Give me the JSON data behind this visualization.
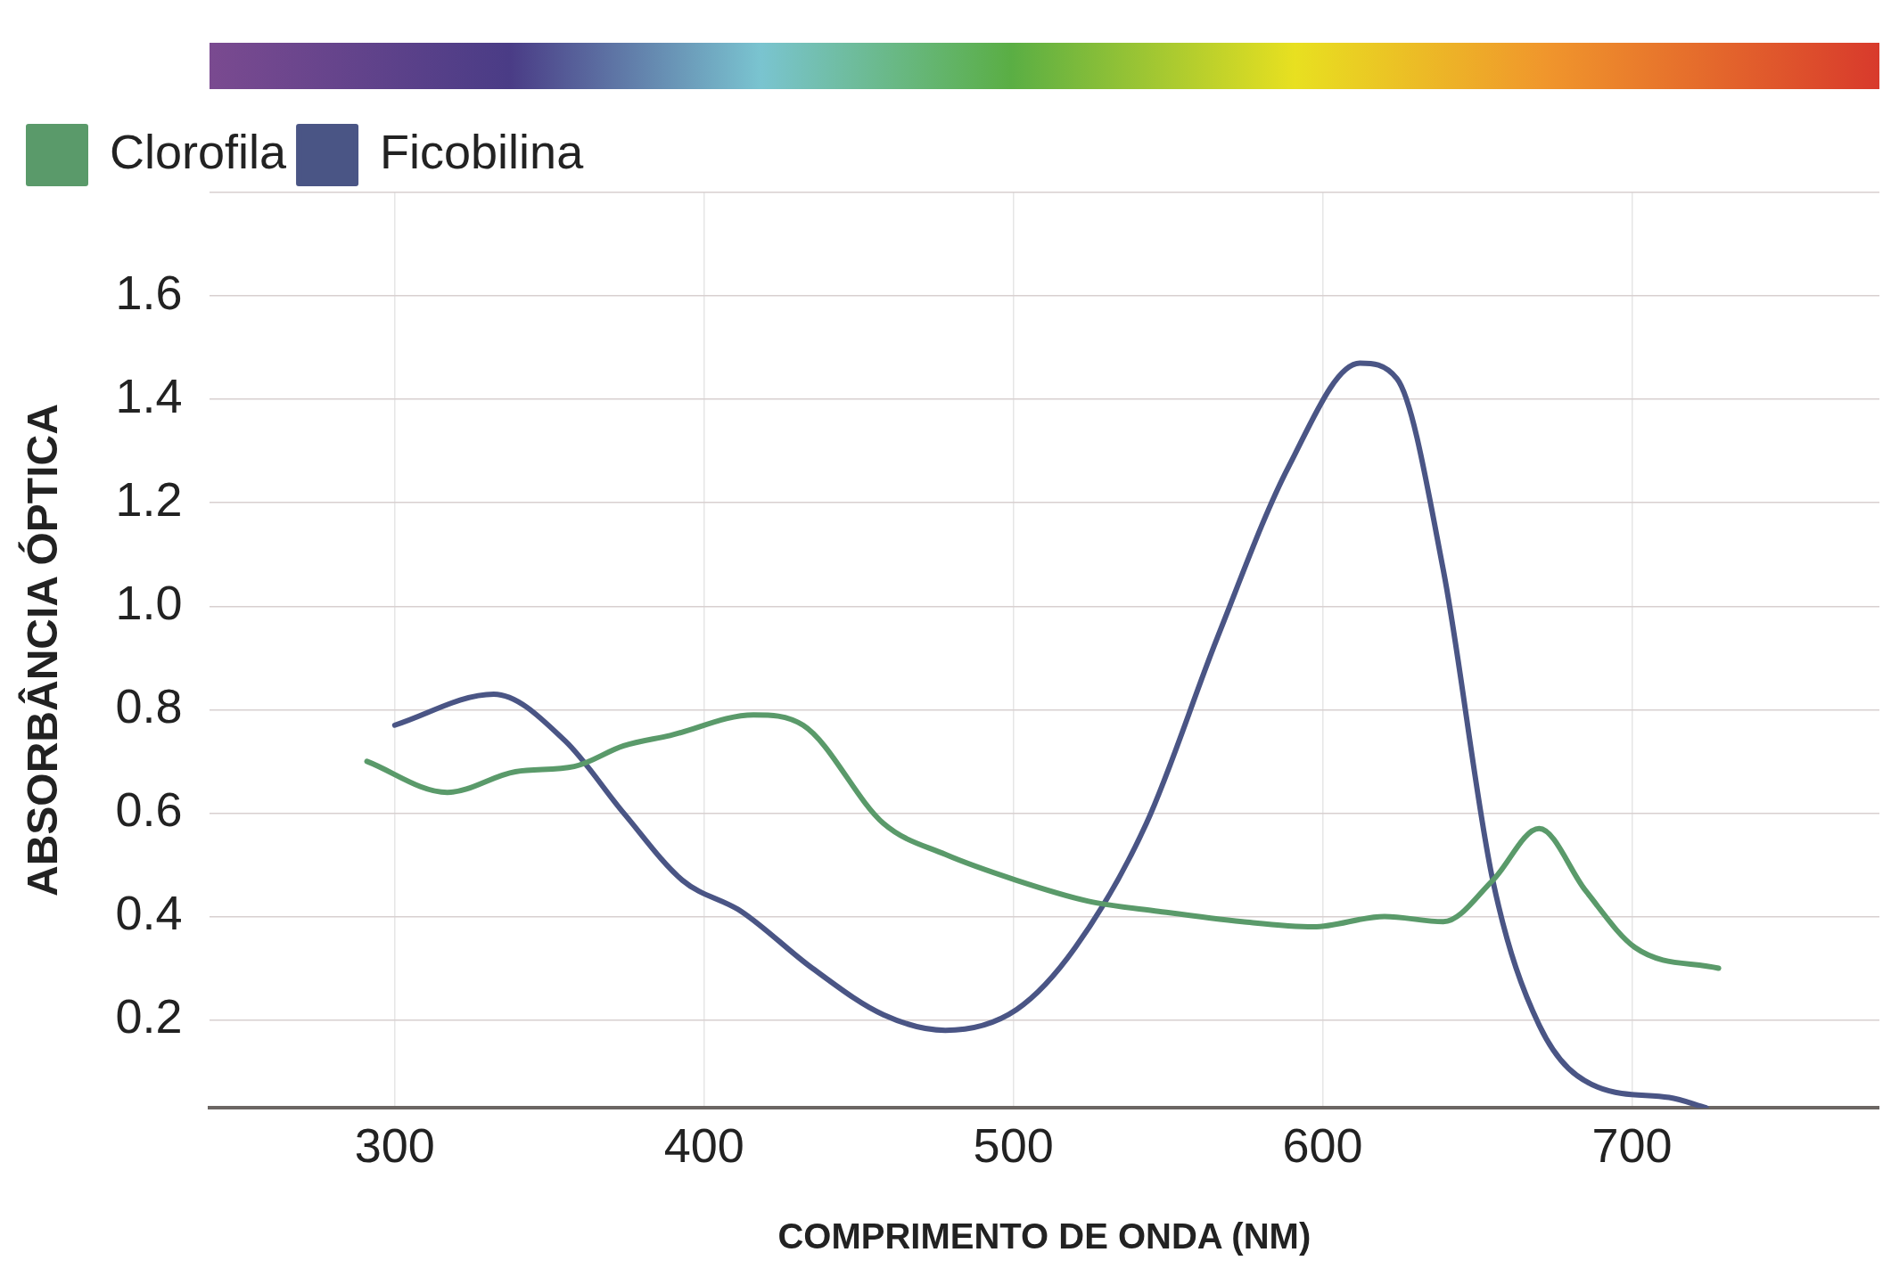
{
  "chart_data": {
    "type": "line",
    "xlabel": "COMPRIMENTO DE ONDA (NM)",
    "ylabel": "ABSORBÂNCIA ÓPTICA",
    "xlim": [
      240,
      780
    ],
    "xticks": [
      300,
      400,
      500,
      600,
      700
    ],
    "ylim": [
      0.03,
      1.8
    ],
    "yticks": [
      0.2,
      0.4,
      0.6,
      0.8,
      {
        "value": 1,
        "label": "1.0"
      },
      1.2,
      1.4,
      1.6,
      {
        "value": 1.8,
        "label": null
      }
    ],
    "grid": true,
    "legend": "top left",
    "marker": "none",
    "line_style": "solid",
    "series": [
      {
        "name": "Clorofila",
        "color": "#5a9a6a",
        "x": [
          291,
          317,
          339,
          358,
          374,
          389,
          416,
          432,
          458,
          478,
          501,
          524,
          547,
          574,
          597,
          620,
          639,
          655,
          670,
          685,
          701,
          728
        ],
        "values": [
          0.7,
          0.64,
          0.68,
          0.69,
          0.73,
          0.75,
          0.79,
          0.77,
          0.58,
          0.52,
          0.47,
          0.43,
          0.41,
          0.39,
          0.38,
          0.4,
          0.39,
          0.47,
          0.57,
          0.45,
          0.34,
          0.3
        ]
      },
      {
        "name": "Ficobilina",
        "color": "#4a5585",
        "x": [
          300,
          332,
          355,
          374,
          393,
          412,
          435,
          458,
          478,
          501,
          520,
          543,
          566,
          589,
          612,
          624,
          639,
          655,
          670,
          689,
          712,
          724
        ],
        "values": [
          0.77,
          0.83,
          0.74,
          0.6,
          0.47,
          0.41,
          0.3,
          0.21,
          0.18,
          0.22,
          0.34,
          0.58,
          0.94,
          1.27,
          1.47,
          1.44,
          1.07,
          0.47,
          0.19,
          0.07,
          0.05,
          0.03
        ]
      }
    ]
  }
}
